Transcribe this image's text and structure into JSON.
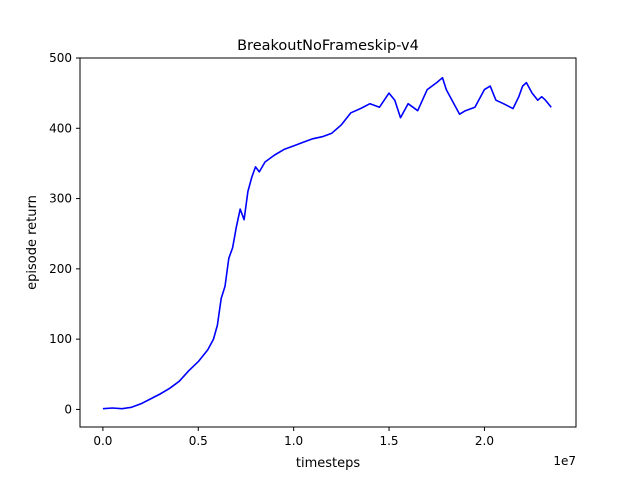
{
  "chart_data": {
    "type": "line",
    "title": "BreakoutNoFrameskip-v4",
    "xlabel": "timesteps",
    "ylabel": "episode return",
    "x_offset_label": "1e7",
    "xlim": [
      -1200000,
      24800000
    ],
    "ylim": [
      -25,
      500
    ],
    "x_ticks": [
      0,
      5000000,
      10000000,
      15000000,
      20000000
    ],
    "x_tick_labels": [
      "0.0",
      "0.5",
      "1.0",
      "1.5",
      "2.0"
    ],
    "y_ticks": [
      0,
      100,
      200,
      300,
      400,
      500
    ],
    "y_tick_labels": [
      "0",
      "100",
      "200",
      "300",
      "400",
      "500"
    ],
    "grid": false,
    "legend": false,
    "series": [
      {
        "color": "#0000ff",
        "x": [
          0,
          500000,
          1000000,
          1500000,
          2000000,
          2500000,
          3000000,
          3500000,
          4000000,
          4500000,
          5000000,
          5500000,
          5800000,
          6000000,
          6200000,
          6400000,
          6600000,
          6800000,
          7000000,
          7200000,
          7400000,
          7600000,
          7800000,
          8000000,
          8200000,
          8500000,
          9000000,
          9500000,
          10000000,
          10500000,
          11000000,
          11500000,
          12000000,
          12500000,
          13000000,
          13500000,
          14000000,
          14500000,
          15000000,
          15300000,
          15600000,
          16000000,
          16500000,
          17000000,
          17500000,
          17800000,
          18000000,
          18300000,
          18700000,
          19000000,
          19500000,
          20000000,
          20300000,
          20600000,
          21000000,
          21500000,
          21800000,
          22000000,
          22200000,
          22500000,
          22800000,
          23000000,
          23200000,
          23500000
        ],
        "y": [
          1,
          2,
          1,
          3,
          8,
          15,
          22,
          30,
          40,
          55,
          68,
          85,
          100,
          120,
          158,
          175,
          215,
          230,
          260,
          285,
          270,
          310,
          330,
          345,
          338,
          352,
          362,
          370,
          375,
          380,
          385,
          388,
          393,
          405,
          422,
          428,
          435,
          430,
          450,
          440,
          415,
          435,
          425,
          455,
          465,
          472,
          455,
          440,
          420,
          425,
          430,
          455,
          460,
          440,
          435,
          428,
          445,
          460,
          465,
          450,
          440,
          445,
          440,
          430
        ]
      }
    ]
  }
}
